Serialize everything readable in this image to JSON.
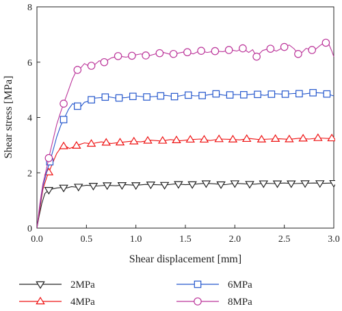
{
  "chart_data": {
    "type": "line",
    "xlabel": "Shear displacement [mm]",
    "ylabel": "Shear stress [MPa]",
    "xlim": [
      0.0,
      3.0
    ],
    "ylim": [
      0,
      8
    ],
    "x_ticks": [
      "0.0",
      "0.5",
      "1.0",
      "1.5",
      "2.0",
      "2.5",
      "3.0"
    ],
    "y_ticks": [
      "0",
      "2",
      "4",
      "6",
      "8"
    ],
    "grid": false,
    "legend_position": "bottom",
    "series": [
      {
        "name": "2MPa",
        "color": "#222222",
        "marker": "triangle-down",
        "x": [
          0.0,
          0.02,
          0.05,
          0.08,
          0.12,
          0.16,
          0.2,
          0.25,
          0.3,
          0.35,
          0.4,
          0.45,
          0.5,
          0.6,
          0.7,
          0.8,
          0.9,
          1.0,
          1.1,
          1.2,
          1.3,
          1.4,
          1.5,
          1.6,
          1.7,
          1.8,
          1.9,
          2.0,
          2.1,
          2.2,
          2.3,
          2.4,
          2.5,
          2.6,
          2.7,
          2.8,
          2.9,
          3.0
        ],
        "y": [
          0.0,
          0.4,
          0.9,
          1.25,
          1.38,
          1.42,
          1.45,
          1.47,
          1.45,
          1.5,
          1.48,
          1.52,
          1.55,
          1.52,
          1.55,
          1.53,
          1.57,
          1.55,
          1.58,
          1.57,
          1.56,
          1.6,
          1.57,
          1.59,
          1.62,
          1.6,
          1.57,
          1.62,
          1.6,
          1.59,
          1.62,
          1.61,
          1.63,
          1.61,
          1.62,
          1.63,
          1.62,
          1.63
        ],
        "marker_x": [
          0.12,
          0.27,
          0.42,
          0.57,
          0.71,
          0.86,
          1.0,
          1.15,
          1.29,
          1.43,
          1.57,
          1.71,
          1.86,
          2.0,
          2.15,
          2.29,
          2.43,
          2.57,
          2.71,
          2.86,
          3.0
        ]
      },
      {
        "name": "4MPa",
        "color": "#ee1111",
        "marker": "triangle-up",
        "x": [
          0.0,
          0.03,
          0.06,
          0.1,
          0.13,
          0.17,
          0.2,
          0.24,
          0.28,
          0.33,
          0.38,
          0.43,
          0.48,
          0.55,
          0.65,
          0.75,
          0.85,
          0.95,
          1.05,
          1.15,
          1.25,
          1.35,
          1.45,
          1.55,
          1.65,
          1.75,
          1.85,
          1.95,
          2.05,
          2.15,
          2.25,
          2.35,
          2.45,
          2.55,
          2.65,
          2.75,
          2.85,
          2.95,
          3.0
        ],
        "y": [
          0.0,
          0.7,
          1.4,
          1.85,
          2.1,
          2.45,
          2.7,
          2.9,
          2.98,
          2.88,
          2.95,
          3.02,
          3.08,
          3.05,
          3.12,
          3.06,
          3.1,
          3.14,
          3.12,
          3.18,
          3.15,
          3.2,
          3.16,
          3.2,
          3.22,
          3.17,
          3.22,
          3.21,
          3.19,
          3.24,
          3.2,
          3.22,
          3.23,
          3.21,
          3.25,
          3.22,
          3.26,
          3.24,
          3.25
        ],
        "marker_x": [
          0.12,
          0.27,
          0.4,
          0.55,
          0.7,
          0.84,
          0.98,
          1.12,
          1.27,
          1.41,
          1.55,
          1.69,
          1.84,
          1.98,
          2.12,
          2.27,
          2.41,
          2.55,
          2.69,
          2.84,
          2.98
        ]
      },
      {
        "name": "6MPa",
        "color": "#2255cc",
        "marker": "square",
        "x": [
          0.0,
          0.03,
          0.06,
          0.1,
          0.13,
          0.17,
          0.2,
          0.24,
          0.28,
          0.32,
          0.36,
          0.4,
          0.44,
          0.48,
          0.53,
          0.58,
          0.65,
          0.72,
          0.8,
          0.9,
          1.0,
          1.1,
          1.2,
          1.3,
          1.4,
          1.5,
          1.6,
          1.7,
          1.8,
          1.9,
          2.0,
          2.1,
          2.2,
          2.3,
          2.4,
          2.5,
          2.6,
          2.7,
          2.8,
          2.9,
          3.0
        ],
        "y": [
          0.0,
          0.8,
          1.5,
          2.05,
          2.4,
          2.9,
          3.3,
          3.7,
          4.0,
          4.3,
          4.5,
          4.42,
          4.38,
          4.55,
          4.6,
          4.7,
          4.72,
          4.75,
          4.7,
          4.72,
          4.78,
          4.74,
          4.76,
          4.8,
          4.75,
          4.82,
          4.78,
          4.8,
          4.86,
          4.8,
          4.83,
          4.82,
          4.85,
          4.8,
          4.86,
          4.84,
          4.87,
          4.85,
          4.9,
          4.88,
          4.78
        ],
        "marker_x": [
          0.13,
          0.27,
          0.41,
          0.55,
          0.69,
          0.83,
          0.97,
          1.11,
          1.25,
          1.39,
          1.53,
          1.67,
          1.81,
          1.95,
          2.09,
          2.23,
          2.37,
          2.51,
          2.65,
          2.79,
          2.93
        ]
      },
      {
        "name": "8MPa",
        "color": "#bb3399",
        "marker": "circle",
        "x": [
          0.0,
          0.03,
          0.06,
          0.1,
          0.13,
          0.17,
          0.2,
          0.24,
          0.28,
          0.32,
          0.36,
          0.4,
          0.44,
          0.48,
          0.53,
          0.58,
          0.63,
          0.68,
          0.75,
          0.82,
          0.9,
          0.98,
          1.05,
          1.12,
          1.2,
          1.28,
          1.35,
          1.42,
          1.5,
          1.58,
          1.65,
          1.72,
          1.8,
          1.88,
          1.95,
          2.02,
          2.08,
          2.14,
          2.18,
          2.22,
          2.28,
          2.35,
          2.42,
          2.5,
          2.55,
          2.6,
          2.65,
          2.72,
          2.8,
          2.86,
          2.91,
          2.95,
          2.98,
          3.0
        ],
        "y": [
          0.0,
          0.9,
          1.6,
          2.2,
          2.7,
          3.3,
          3.75,
          4.2,
          4.6,
          5.0,
          5.4,
          5.7,
          5.78,
          5.95,
          5.85,
          5.9,
          6.05,
          6.0,
          6.15,
          6.22,
          6.18,
          6.25,
          6.3,
          6.22,
          6.3,
          6.35,
          6.28,
          6.32,
          6.38,
          6.3,
          6.42,
          6.35,
          6.4,
          6.38,
          6.45,
          6.4,
          6.5,
          6.35,
          6.45,
          6.2,
          6.42,
          6.5,
          6.4,
          6.55,
          6.62,
          6.48,
          6.25,
          6.5,
          6.42,
          6.6,
          6.72,
          6.65,
          6.4,
          6.2
        ],
        "marker_x": [
          0.12,
          0.27,
          0.41,
          0.55,
          0.68,
          0.82,
          0.96,
          1.1,
          1.24,
          1.38,
          1.52,
          1.66,
          1.8,
          1.94,
          2.08,
          2.22,
          2.36,
          2.5,
          2.64,
          2.78,
          2.92
        ]
      }
    ]
  }
}
